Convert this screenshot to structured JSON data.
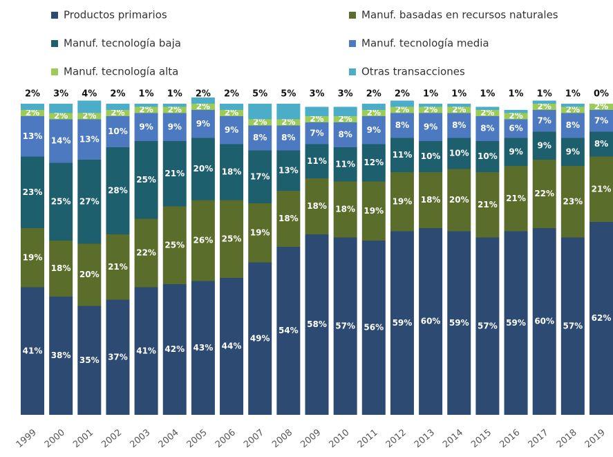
{
  "chart_data": {
    "type": "bar",
    "stacked": true,
    "legend": "top",
    "categories": [
      "1999",
      "2000",
      "2001",
      "2002",
      "2003",
      "2004",
      "2005",
      "2006",
      "2007",
      "2008",
      "2009",
      "2010",
      "2011",
      "2012",
      "2013",
      "2014",
      "2015",
      "2016",
      "2017",
      "2018",
      "2019"
    ],
    "ylim": [
      0,
      100
    ],
    "series": [
      {
        "name": "Productos primarios",
        "color": "#2d4a72",
        "values": [
          41,
          38,
          35,
          37,
          41,
          42,
          43,
          44,
          49,
          54,
          58,
          57,
          56,
          59,
          60,
          59,
          57,
          59,
          60,
          57,
          62
        ],
        "value_labels": [
          "41%",
          "38%",
          "35%",
          "37%",
          "41%",
          "42%",
          "43%",
          "44%",
          "49%",
          "54%",
          "58%",
          "57%",
          "56%",
          "59%",
          "60%",
          "59%",
          "57%",
          "59%",
          "60%",
          "57%",
          "62%"
        ]
      },
      {
        "name": "Manuf. basadas en recursos naturales",
        "color": "#5b6d2b",
        "values": [
          19,
          18,
          20,
          21,
          22,
          25,
          26,
          25,
          19,
          18,
          18,
          18,
          19,
          19,
          18,
          20,
          21,
          21,
          22,
          23,
          21
        ],
        "value_labels": [
          "19%",
          "18%",
          "20%",
          "21%",
          "22%",
          "25%",
          "26%",
          "25%",
          "19%",
          "18%",
          "18%",
          "18%",
          "19%",
          "19%",
          "18%",
          "20%",
          "21%",
          "21%",
          "22%",
          "23%",
          "21%"
        ]
      },
      {
        "name": "Manuf. tecnología baja",
        "color": "#1e5f6e",
        "values": [
          23,
          25,
          27,
          28,
          25,
          21,
          20,
          18,
          17,
          13,
          11,
          11,
          12,
          11,
          10,
          10,
          10,
          9,
          9,
          9,
          8
        ],
        "value_labels": [
          "23%",
          "25%",
          "27%",
          "28%",
          "25%",
          "21%",
          "20%",
          "18%",
          "17%",
          "13%",
          "11%",
          "11%",
          "12%",
          "11%",
          "10%",
          "10%",
          "10%",
          "9%",
          "9%",
          "9%",
          "8%"
        ]
      },
      {
        "name": "Manuf. tecnología media",
        "color": "#4c79c0",
        "values": [
          13,
          14,
          13,
          10,
          9,
          9,
          9,
          9,
          8,
          8,
          7,
          8,
          9,
          8,
          9,
          8,
          8,
          6,
          7,
          8,
          7
        ],
        "value_labels": [
          "13%",
          "14%",
          "13%",
          "10%",
          "9%",
          "9%",
          "9%",
          "9%",
          "8%",
          "8%",
          "7%",
          "8%",
          "9%",
          "8%",
          "9%",
          "8%",
          "8%",
          "6%",
          "7%",
          "8%",
          "7%"
        ]
      },
      {
        "name": "Manuf. tecnología alta",
        "color": "#9ccb5a",
        "values": [
          2,
          2,
          2,
          2,
          2,
          2,
          2,
          2,
          2,
          2,
          2,
          2,
          2,
          2,
          2,
          2,
          2,
          2,
          2,
          2,
          2
        ],
        "value_labels": [
          "2%",
          "2%",
          "2%",
          "2%",
          "2%",
          "2%",
          "2%",
          "2%",
          "2%",
          "2%",
          "2%",
          "2%",
          "2%",
          "2%",
          "2%",
          "2%",
          "2%",
          "2%",
          "2%",
          "2%",
          "2%"
        ]
      },
      {
        "name": "Otras transacciones",
        "color": "#4badc7",
        "values": [
          2,
          3,
          4,
          2,
          1,
          1,
          2,
          2,
          5,
          5,
          3,
          3,
          2,
          2,
          1,
          1,
          1,
          1,
          1,
          1,
          0
        ],
        "value_labels": [
          "2%",
          "3%",
          "4%",
          "2%",
          "1%",
          "1%",
          "2%",
          "2%",
          "5%",
          "5%",
          "3%",
          "3%",
          "2%",
          "2%",
          "1%",
          "1%",
          "1%",
          "1%",
          "1%",
          "1%",
          "0%"
        ]
      }
    ]
  }
}
